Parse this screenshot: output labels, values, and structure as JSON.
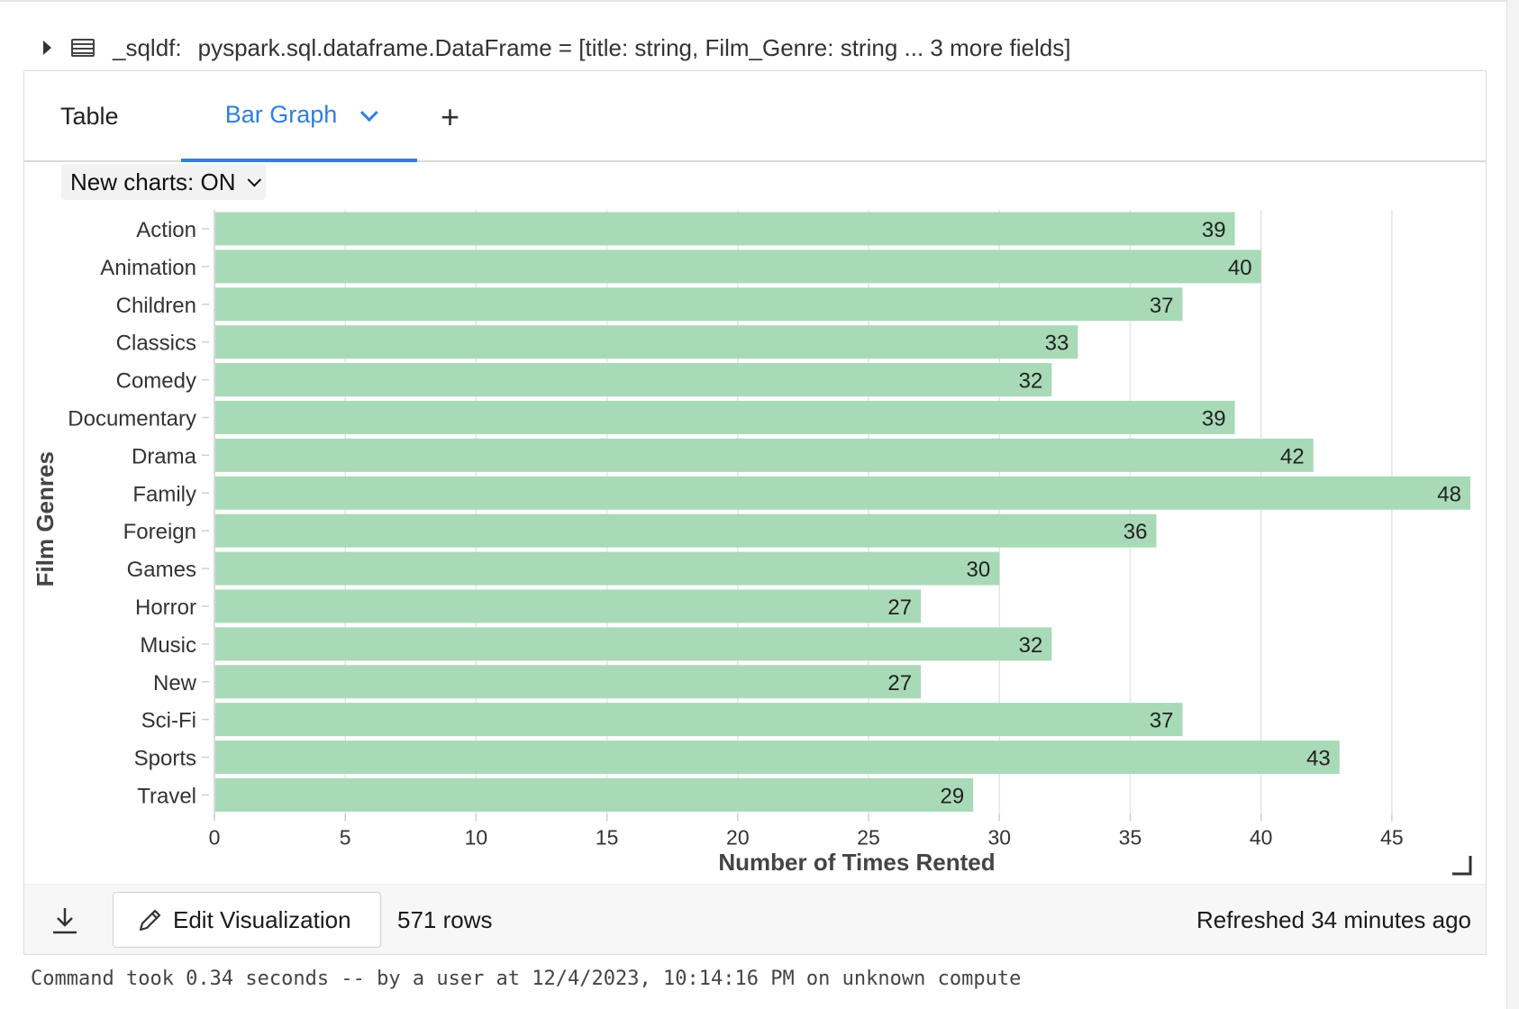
{
  "dataframe": {
    "name": "_sqldf:",
    "type": "pyspark.sql.dataframe.DataFrame = [title: string, Film_Genre: string ... 3 more fields]"
  },
  "tabs": {
    "table": "Table",
    "bar_graph": "Bar Graph",
    "add": "+"
  },
  "new_charts": "New charts: ON",
  "footer": {
    "edit_visualization": "Edit Visualization",
    "rows": "571 rows",
    "refreshed": "Refreshed 34 minutes ago"
  },
  "command_info": "Command took 0.34 seconds -- by a user at 12/4/2023, 10:14:16 PM on unknown compute",
  "colors": {
    "bar": "#a8dab7",
    "accent": "#2f7fe0"
  },
  "icons": {
    "expand": "caret-right-icon",
    "table": "table-icon",
    "download": "download-icon",
    "edit": "pencil-icon",
    "resize": "resize-handle-icon"
  },
  "chart_data": {
    "type": "bar",
    "orientation": "horizontal",
    "categories": [
      "Action",
      "Animation",
      "Children",
      "Classics",
      "Comedy",
      "Documentary",
      "Drama",
      "Family",
      "Foreign",
      "Games",
      "Horror",
      "Music",
      "New",
      "Sci-Fi",
      "Sports",
      "Travel"
    ],
    "values": [
      39,
      40,
      37,
      33,
      32,
      39,
      42,
      48,
      36,
      30,
      27,
      32,
      27,
      37,
      43,
      29
    ],
    "xlabel": "Number of Times Rented",
    "ylabel": "Film Genres",
    "xlim": [
      0,
      48
    ],
    "xticks": [
      0,
      5,
      10,
      15,
      20,
      25,
      30,
      35,
      40,
      45
    ],
    "grid": true,
    "data_labels": true
  }
}
